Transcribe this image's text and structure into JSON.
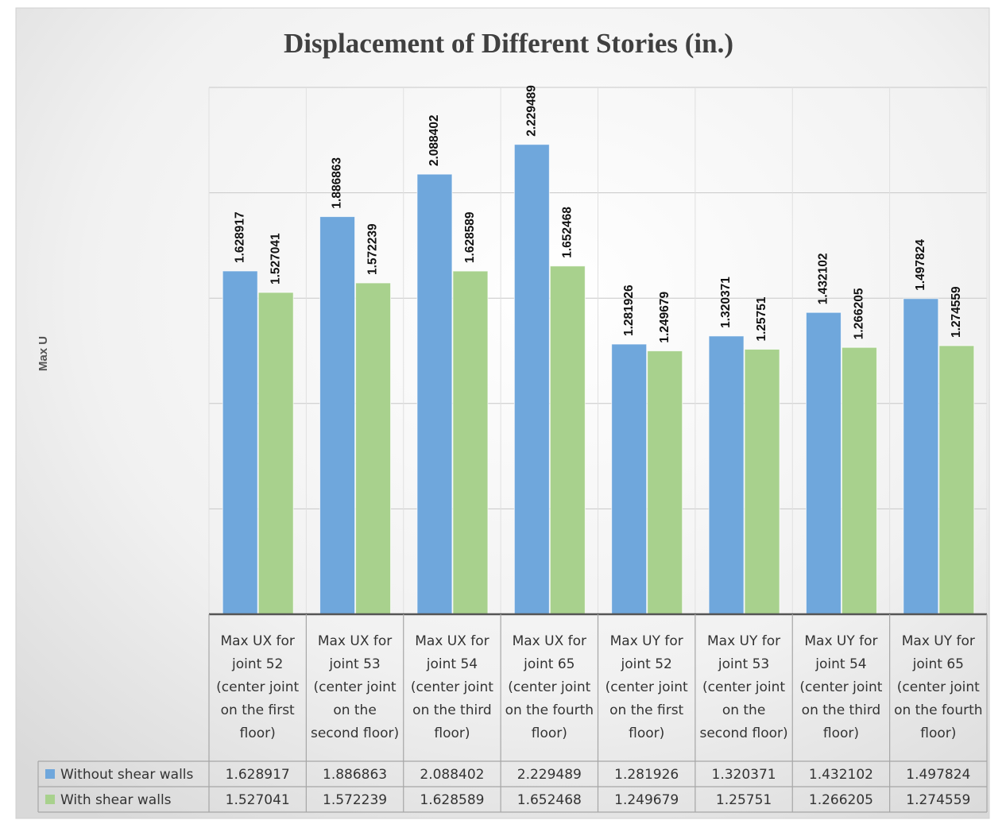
{
  "chart_data": {
    "type": "bar",
    "title": "Displacement  of Different Stories (in.)",
    "y_label": "Max U",
    "categories": [
      "Max UX for joint 52 (center joint on the first floor)",
      "Max UX for joint 53 (center joint on the second floor)",
      "Max UX for joint 54 (center joint on the third floor)",
      "Max UX for joint 65 (center joint on the fourth floor)",
      "Max UY for joint 52 (center joint on the first floor)",
      "Max UY for joint 53 (center joint on the second floor)",
      "Max UY for joint 54 (center joint on the third floor)",
      "Max UY for joint 65 (center joint on the fourth floor)"
    ],
    "series": [
      {
        "name": "Without shear walls",
        "color": "#6fa7dc",
        "values": [
          1.628917,
          1.886863,
          2.088402,
          2.229489,
          1.281926,
          1.320371,
          1.432102,
          1.497824
        ]
      },
      {
        "name": "With shear walls",
        "color": "#a8d18d",
        "values": [
          1.527041,
          1.572239,
          1.628589,
          1.652468,
          1.249679,
          1.25751,
          1.266205,
          1.274559
        ]
      }
    ],
    "ylim": [
      0,
      2.5
    ],
    "yticks": [
      0,
      0.5,
      1,
      1.5,
      2,
      2.5
    ],
    "grid": true
  }
}
